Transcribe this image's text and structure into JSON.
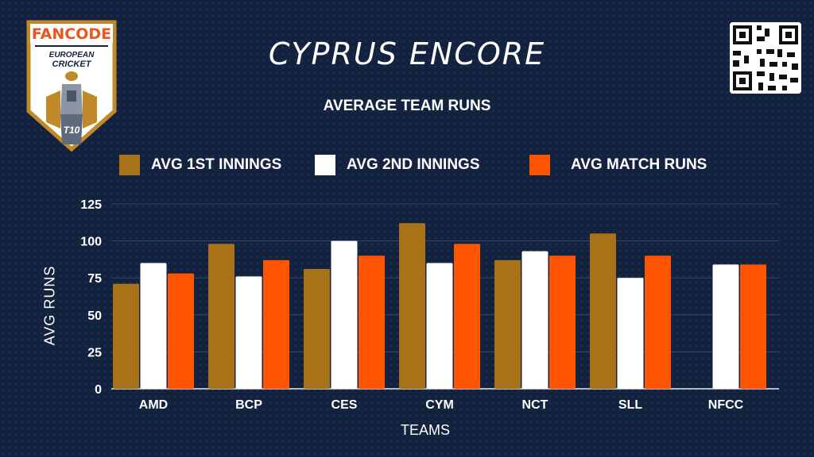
{
  "brand": {
    "logo_top": "FANCODE",
    "logo_line1": "EUROPEAN",
    "logo_line2": "CRICKET",
    "logo_badge": "T10",
    "qr_icon": "qr-code-icon"
  },
  "colors": {
    "background": "#13233f",
    "series_1": "#a87318",
    "series_2": "#ffffff",
    "series_3": "#ff5500"
  },
  "chart_data": {
    "type": "bar",
    "title": "CYPRUS ENCORE",
    "subtitle": "AVERAGE TEAM RUNS",
    "xlabel": "TEAMS",
    "ylabel": "AVG RUNS",
    "ylim": [
      0,
      125
    ],
    "yticks": [
      0,
      25,
      50,
      75,
      100,
      125
    ],
    "grid": true,
    "legend_position": "top",
    "categories": [
      "AMD",
      "BCP",
      "CES",
      "CYM",
      "NCT",
      "SLL",
      "NFCC"
    ],
    "series": [
      {
        "name": "AVG 1ST INNINGS",
        "color": "#a87318",
        "values": [
          71,
          98,
          81,
          112,
          87,
          105,
          null
        ]
      },
      {
        "name": "AVG 2ND INNINGS",
        "color": "#ffffff",
        "values": [
          85,
          76,
          100,
          85,
          93,
          75,
          84
        ]
      },
      {
        "name": "AVG MATCH RUNS",
        "color": "#ff5500",
        "values": [
          78,
          87,
          90,
          98,
          90,
          90,
          84
        ]
      }
    ]
  }
}
